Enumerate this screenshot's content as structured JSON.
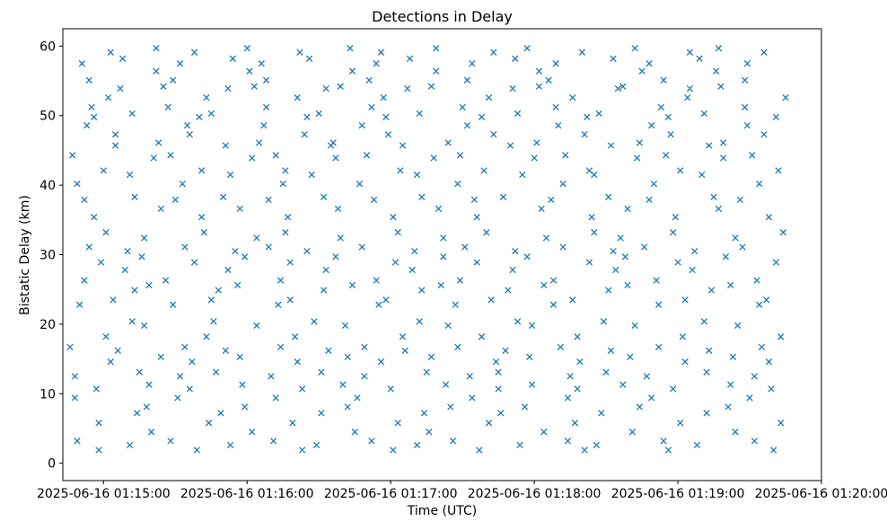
{
  "figure": {
    "background": "#ffffff"
  },
  "chart_data": {
    "type": "scatter",
    "title": "Detections in Delay",
    "xlabel": "Time (UTC)",
    "ylabel": "Bistatic Delay (km)",
    "marker": "x",
    "marker_color": "#1f77b4",
    "grid": false,
    "legend": null,
    "x_axis": {
      "tick_labels": [
        "2025-06-16 01:15:00",
        "2025-06-16 01:16:00",
        "2025-06-16 01:17:00",
        "2025-06-16 01:18:00",
        "2025-06-16 01:19:00",
        "2025-06-16 01:20:00"
      ],
      "tick_seconds": [
        0,
        60,
        120,
        180,
        240,
        300
      ],
      "t_reference": "seconds after 2025-06-16 01:15:00 UTC",
      "xlim_seconds": [
        -17,
        300
      ]
    },
    "y_axis": {
      "ticks": [
        0,
        10,
        20,
        30,
        40,
        50,
        60
      ],
      "ylim": [
        -2.5,
        62.5
      ]
    },
    "points": [
      [
        -9,
        57.5
      ],
      [
        -13,
        44.3
      ],
      [
        -6,
        31.1
      ],
      [
        -10,
        22.8
      ],
      [
        -12,
        9.4
      ],
      [
        -5,
        51.2
      ],
      [
        -14,
        16.7
      ],
      [
        -8,
        37.9
      ],
      [
        -11,
        3.2
      ],
      [
        -7,
        48.6
      ],
      [
        -8,
        26.3
      ],
      [
        -12,
        12.5
      ],
      [
        -6,
        55.1
      ],
      [
        -11,
        40.2
      ],
      [
        -2,
        5.8
      ],
      [
        3,
        59.1
      ],
      [
        -4,
        35.4
      ],
      [
        1,
        18.2
      ],
      [
        5,
        47.3
      ],
      [
        -1,
        28.9
      ],
      [
        2,
        52.6
      ],
      [
        -3,
        10.7
      ],
      [
        0,
        42.1
      ],
      [
        4,
        23.5
      ],
      [
        -2,
        1.9
      ],
      [
        1,
        33.2
      ],
      [
        3,
        14.6
      ],
      [
        -4,
        49.8
      ],
      [
        10,
        30.5
      ],
      [
        14,
        7.2
      ],
      [
        7,
        53.9
      ],
      [
        12,
        20.4
      ],
      [
        5,
        45.7
      ],
      [
        11,
        2.6
      ],
      [
        13,
        38.3
      ],
      [
        8,
        58.2
      ],
      [
        15,
        13.1
      ],
      [
        9,
        27.8
      ],
      [
        12,
        50.3
      ],
      [
        6,
        16.2
      ],
      [
        11,
        41.5
      ],
      [
        13,
        24.9
      ],
      [
        23,
        46.1
      ],
      [
        19,
        11.3
      ],
      [
        22,
        56.4
      ],
      [
        16,
        29.7
      ],
      [
        20,
        4.5
      ],
      [
        24,
        36.6
      ],
      [
        17,
        19.8
      ],
      [
        25,
        54.2
      ],
      [
        18,
        8.1
      ],
      [
        21,
        43.9
      ],
      [
        19,
        25.6
      ],
      [
        22,
        59.7
      ],
      [
        17,
        32.4
      ],
      [
        24,
        15.3
      ],
      [
        31,
        9.4
      ],
      [
        27,
        51.2
      ],
      [
        34,
        16.7
      ],
      [
        30,
        37.9
      ],
      [
        28,
        3.2
      ],
      [
        35,
        48.6
      ],
      [
        26,
        26.3
      ],
      [
        32,
        12.5
      ],
      [
        29,
        55.1
      ],
      [
        33,
        40.2
      ],
      [
        32,
        57.5
      ],
      [
        28,
        44.3
      ],
      [
        34,
        31.1
      ],
      [
        29,
        22.8
      ],
      [
        38,
        28.9
      ],
      [
        43,
        52.6
      ],
      [
        36,
        10.7
      ],
      [
        41,
        42.1
      ],
      [
        45,
        23.5
      ],
      [
        39,
        1.9
      ],
      [
        42,
        33.2
      ],
      [
        37,
        14.6
      ],
      [
        40,
        49.8
      ],
      [
        44,
        5.8
      ],
      [
        38,
        59.1
      ],
      [
        41,
        35.4
      ],
      [
        43,
        18.2
      ],
      [
        36,
        47.3
      ],
      [
        50,
        38.3
      ],
      [
        54,
        58.2
      ],
      [
        47,
        13.1
      ],
      [
        52,
        27.8
      ],
      [
        45,
        50.3
      ],
      [
        51,
        16.2
      ],
      [
        53,
        41.5
      ],
      [
        48,
        24.9
      ],
      [
        55,
        30.5
      ],
      [
        49,
        7.2
      ],
      [
        52,
        53.9
      ],
      [
        46,
        20.4
      ],
      [
        51,
        45.7
      ],
      [
        53,
        2.6
      ],
      [
        63,
        54.2
      ],
      [
        59,
        8.1
      ],
      [
        62,
        43.9
      ],
      [
        56,
        25.6
      ],
      [
        60,
        59.7
      ],
      [
        64,
        32.4
      ],
      [
        57,
        15.3
      ],
      [
        65,
        46.1
      ],
      [
        58,
        11.3
      ],
      [
        61,
        56.4
      ],
      [
        59,
        29.7
      ],
      [
        62,
        4.5
      ],
      [
        57,
        36.6
      ],
      [
        64,
        19.8
      ],
      [
        71,
        3.2
      ],
      [
        67,
        48.6
      ],
      [
        74,
        26.3
      ],
      [
        70,
        12.5
      ],
      [
        68,
        55.1
      ],
      [
        75,
        40.2
      ],
      [
        66,
        57.5
      ],
      [
        72,
        44.3
      ],
      [
        69,
        31.1
      ],
      [
        73,
        22.8
      ],
      [
        72,
        9.4
      ],
      [
        68,
        51.2
      ],
      [
        74,
        16.7
      ],
      [
        69,
        37.9
      ],
      [
        78,
        23.5
      ],
      [
        83,
        1.9
      ],
      [
        76,
        33.2
      ],
      [
        81,
        14.6
      ],
      [
        85,
        49.8
      ],
      [
        79,
        5.8
      ],
      [
        82,
        59.1
      ],
      [
        77,
        35.4
      ],
      [
        80,
        18.2
      ],
      [
        84,
        47.3
      ],
      [
        78,
        28.9
      ],
      [
        81,
        52.6
      ],
      [
        83,
        10.7
      ],
      [
        76,
        42.1
      ],
      [
        90,
        50.3
      ],
      [
        94,
        16.2
      ],
      [
        87,
        41.5
      ],
      [
        92,
        24.9
      ],
      [
        85,
        30.5
      ],
      [
        91,
        7.2
      ],
      [
        93,
        53.9
      ],
      [
        88,
        20.4
      ],
      [
        95,
        45.7
      ],
      [
        89,
        2.6
      ],
      [
        92,
        38.3
      ],
      [
        86,
        58.2
      ],
      [
        91,
        13.1
      ],
      [
        93,
        27.8
      ],
      [
        103,
        59.7
      ],
      [
        99,
        32.4
      ],
      [
        102,
        15.3
      ],
      [
        96,
        46.1
      ],
      [
        100,
        11.3
      ],
      [
        104,
        56.4
      ],
      [
        97,
        29.7
      ],
      [
        105,
        4.5
      ],
      [
        98,
        36.6
      ],
      [
        101,
        19.8
      ],
      [
        99,
        54.2
      ],
      [
        102,
        8.1
      ],
      [
        97,
        43.9
      ],
      [
        104,
        25.6
      ],
      [
        111,
        55.1
      ],
      [
        107,
        40.2
      ],
      [
        114,
        57.5
      ],
      [
        110,
        44.3
      ],
      [
        108,
        31.1
      ],
      [
        115,
        22.8
      ],
      [
        106,
        9.4
      ],
      [
        112,
        51.2
      ],
      [
        109,
        16.7
      ],
      [
        113,
        37.9
      ],
      [
        112,
        3.2
      ],
      [
        108,
        48.6
      ],
      [
        114,
        26.3
      ],
      [
        109,
        12.5
      ],
      [
        118,
        49.8
      ],
      [
        123,
        5.8
      ],
      [
        116,
        59.1
      ],
      [
        121,
        35.4
      ],
      [
        125,
        18.2
      ],
      [
        119,
        47.3
      ],
      [
        122,
        28.9
      ],
      [
        117,
        52.6
      ],
      [
        120,
        10.7
      ],
      [
        124,
        42.1
      ],
      [
        118,
        23.5
      ],
      [
        121,
        1.9
      ],
      [
        123,
        33.2
      ],
      [
        116,
        14.6
      ],
      [
        130,
        30.5
      ],
      [
        134,
        7.2
      ],
      [
        127,
        53.9
      ],
      [
        132,
        20.4
      ],
      [
        125,
        45.7
      ],
      [
        131,
        2.6
      ],
      [
        133,
        38.3
      ],
      [
        128,
        58.2
      ],
      [
        135,
        13.1
      ],
      [
        129,
        27.8
      ],
      [
        132,
        50.3
      ],
      [
        126,
        16.2
      ],
      [
        131,
        41.5
      ],
      [
        133,
        24.9
      ],
      [
        143,
        11.3
      ],
      [
        139,
        56.4
      ],
      [
        142,
        29.7
      ],
      [
        136,
        4.5
      ],
      [
        140,
        36.6
      ],
      [
        144,
        19.8
      ],
      [
        137,
        54.2
      ],
      [
        145,
        8.1
      ],
      [
        138,
        43.9
      ],
      [
        141,
        25.6
      ],
      [
        139,
        59.7
      ],
      [
        142,
        32.4
      ],
      [
        137,
        15.3
      ],
      [
        144,
        46.1
      ],
      [
        151,
        31.1
      ],
      [
        147,
        22.8
      ],
      [
        154,
        9.4
      ],
      [
        150,
        51.2
      ],
      [
        148,
        16.7
      ],
      [
        155,
        37.9
      ],
      [
        146,
        3.2
      ],
      [
        152,
        48.6
      ],
      [
        149,
        26.3
      ],
      [
        153,
        12.5
      ],
      [
        152,
        55.1
      ],
      [
        148,
        40.2
      ],
      [
        154,
        57.5
      ],
      [
        149,
        44.3
      ],
      [
        158,
        18.2
      ],
      [
        163,
        47.3
      ],
      [
        156,
        28.9
      ],
      [
        161,
        52.6
      ],
      [
        165,
        10.7
      ],
      [
        159,
        42.1
      ],
      [
        162,
        23.5
      ],
      [
        157,
        1.9
      ],
      [
        160,
        33.2
      ],
      [
        164,
        14.6
      ],
      [
        158,
        49.8
      ],
      [
        161,
        5.8
      ],
      [
        163,
        59.1
      ],
      [
        156,
        35.4
      ],
      [
        170,
        45.7
      ],
      [
        174,
        2.6
      ],
      [
        167,
        38.3
      ],
      [
        172,
        58.2
      ],
      [
        165,
        13.1
      ],
      [
        171,
        27.8
      ],
      [
        173,
        50.3
      ],
      [
        168,
        16.2
      ],
      [
        175,
        41.5
      ],
      [
        169,
        24.9
      ],
      [
        172,
        30.5
      ],
      [
        166,
        7.2
      ],
      [
        171,
        53.9
      ],
      [
        173,
        20.4
      ],
      [
        183,
        36.6
      ],
      [
        179,
        19.8
      ],
      [
        182,
        54.2
      ],
      [
        176,
        8.1
      ],
      [
        180,
        43.9
      ],
      [
        184,
        25.6
      ],
      [
        177,
        59.7
      ],
      [
        185,
        32.4
      ],
      [
        178,
        15.3
      ],
      [
        181,
        46.1
      ],
      [
        179,
        11.3
      ],
      [
        182,
        56.4
      ],
      [
        177,
        29.7
      ],
      [
        184,
        4.5
      ],
      [
        191,
        16.7
      ],
      [
        187,
        37.9
      ],
      [
        194,
        3.2
      ],
      [
        190,
        48.6
      ],
      [
        188,
        26.3
      ],
      [
        195,
        12.5
      ],
      [
        186,
        55.1
      ],
      [
        192,
        40.2
      ],
      [
        189,
        57.5
      ],
      [
        193,
        44.3
      ],
      [
        192,
        31.1
      ],
      [
        188,
        22.8
      ],
      [
        194,
        9.4
      ],
      [
        189,
        51.2
      ],
      [
        198,
        10.7
      ],
      [
        203,
        42.1
      ],
      [
        196,
        23.5
      ],
      [
        201,
        1.9
      ],
      [
        205,
        33.2
      ],
      [
        199,
        14.6
      ],
      [
        202,
        49.8
      ],
      [
        197,
        5.8
      ],
      [
        200,
        59.1
      ],
      [
        204,
        35.4
      ],
      [
        198,
        18.2
      ],
      [
        201,
        47.3
      ],
      [
        203,
        28.9
      ],
      [
        196,
        52.6
      ],
      [
        210,
        13.1
      ],
      [
        214,
        27.8
      ],
      [
        207,
        50.3
      ],
      [
        212,
        16.2
      ],
      [
        205,
        41.5
      ],
      [
        211,
        24.9
      ],
      [
        213,
        30.5
      ],
      [
        208,
        7.2
      ],
      [
        215,
        53.9
      ],
      [
        209,
        20.4
      ],
      [
        212,
        45.7
      ],
      [
        206,
        2.6
      ],
      [
        211,
        38.3
      ],
      [
        213,
        58.2
      ],
      [
        223,
        43.9
      ],
      [
        219,
        25.6
      ],
      [
        222,
        59.7
      ],
      [
        216,
        32.4
      ],
      [
        220,
        15.3
      ],
      [
        224,
        46.1
      ],
      [
        217,
        11.3
      ],
      [
        225,
        56.4
      ],
      [
        218,
        29.7
      ],
      [
        221,
        4.5
      ],
      [
        219,
        36.6
      ],
      [
        222,
        19.8
      ],
      [
        217,
        54.2
      ],
      [
        224,
        8.1
      ],
      [
        231,
        26.3
      ],
      [
        227,
        12.5
      ],
      [
        234,
        55.1
      ],
      [
        230,
        40.2
      ],
      [
        228,
        57.5
      ],
      [
        235,
        44.3
      ],
      [
        226,
        31.1
      ],
      [
        232,
        22.8
      ],
      [
        229,
        9.4
      ],
      [
        233,
        51.2
      ],
      [
        232,
        16.7
      ],
      [
        228,
        37.9
      ],
      [
        234,
        3.2
      ],
      [
        229,
        48.6
      ],
      [
        238,
        33.2
      ],
      [
        243,
        14.6
      ],
      [
        236,
        49.8
      ],
      [
        241,
        5.8
      ],
      [
        245,
        59.1
      ],
      [
        239,
        35.4
      ],
      [
        242,
        18.2
      ],
      [
        237,
        47.3
      ],
      [
        240,
        28.9
      ],
      [
        244,
        52.6
      ],
      [
        238,
        10.7
      ],
      [
        241,
        42.1
      ],
      [
        243,
        23.5
      ],
      [
        236,
        1.9
      ],
      [
        250,
        41.5
      ],
      [
        254,
        24.9
      ],
      [
        247,
        30.5
      ],
      [
        252,
        7.2
      ],
      [
        245,
        53.9
      ],
      [
        251,
        20.4
      ],
      [
        253,
        45.7
      ],
      [
        248,
        2.6
      ],
      [
        255,
        38.3
      ],
      [
        249,
        58.2
      ],
      [
        252,
        13.1
      ],
      [
        246,
        27.8
      ],
      [
        251,
        50.3
      ],
      [
        253,
        16.2
      ],
      [
        263,
        15.3
      ],
      [
        259,
        46.1
      ],
      [
        262,
        11.3
      ],
      [
        256,
        56.4
      ],
      [
        260,
        29.7
      ],
      [
        264,
        4.5
      ],
      [
        257,
        36.6
      ],
      [
        265,
        19.8
      ],
      [
        258,
        54.2
      ],
      [
        261,
        8.1
      ],
      [
        259,
        43.9
      ],
      [
        262,
        25.6
      ],
      [
        257,
        59.7
      ],
      [
        264,
        32.4
      ],
      [
        271,
        44.3
      ],
      [
        267,
        31.1
      ],
      [
        274,
        22.8
      ],
      [
        270,
        9.4
      ],
      [
        268,
        51.2
      ],
      [
        275,
        16.7
      ],
      [
        266,
        37.9
      ],
      [
        272,
        3.2
      ],
      [
        269,
        48.6
      ],
      [
        273,
        26.3
      ],
      [
        272,
        12.5
      ],
      [
        268,
        55.1
      ],
      [
        274,
        40.2
      ],
      [
        269,
        57.5
      ],
      [
        278,
        35.4
      ],
      [
        283,
        18.2
      ],
      [
        276,
        47.3
      ],
      [
        281,
        28.9
      ],
      [
        285,
        52.6
      ],
      [
        279,
        10.7
      ],
      [
        282,
        42.1
      ],
      [
        277,
        23.5
      ],
      [
        280,
        1.9
      ],
      [
        284,
        33.2
      ],
      [
        278,
        14.6
      ],
      [
        281,
        49.8
      ],
      [
        283,
        5.8
      ],
      [
        276,
        59.1
      ]
    ]
  }
}
